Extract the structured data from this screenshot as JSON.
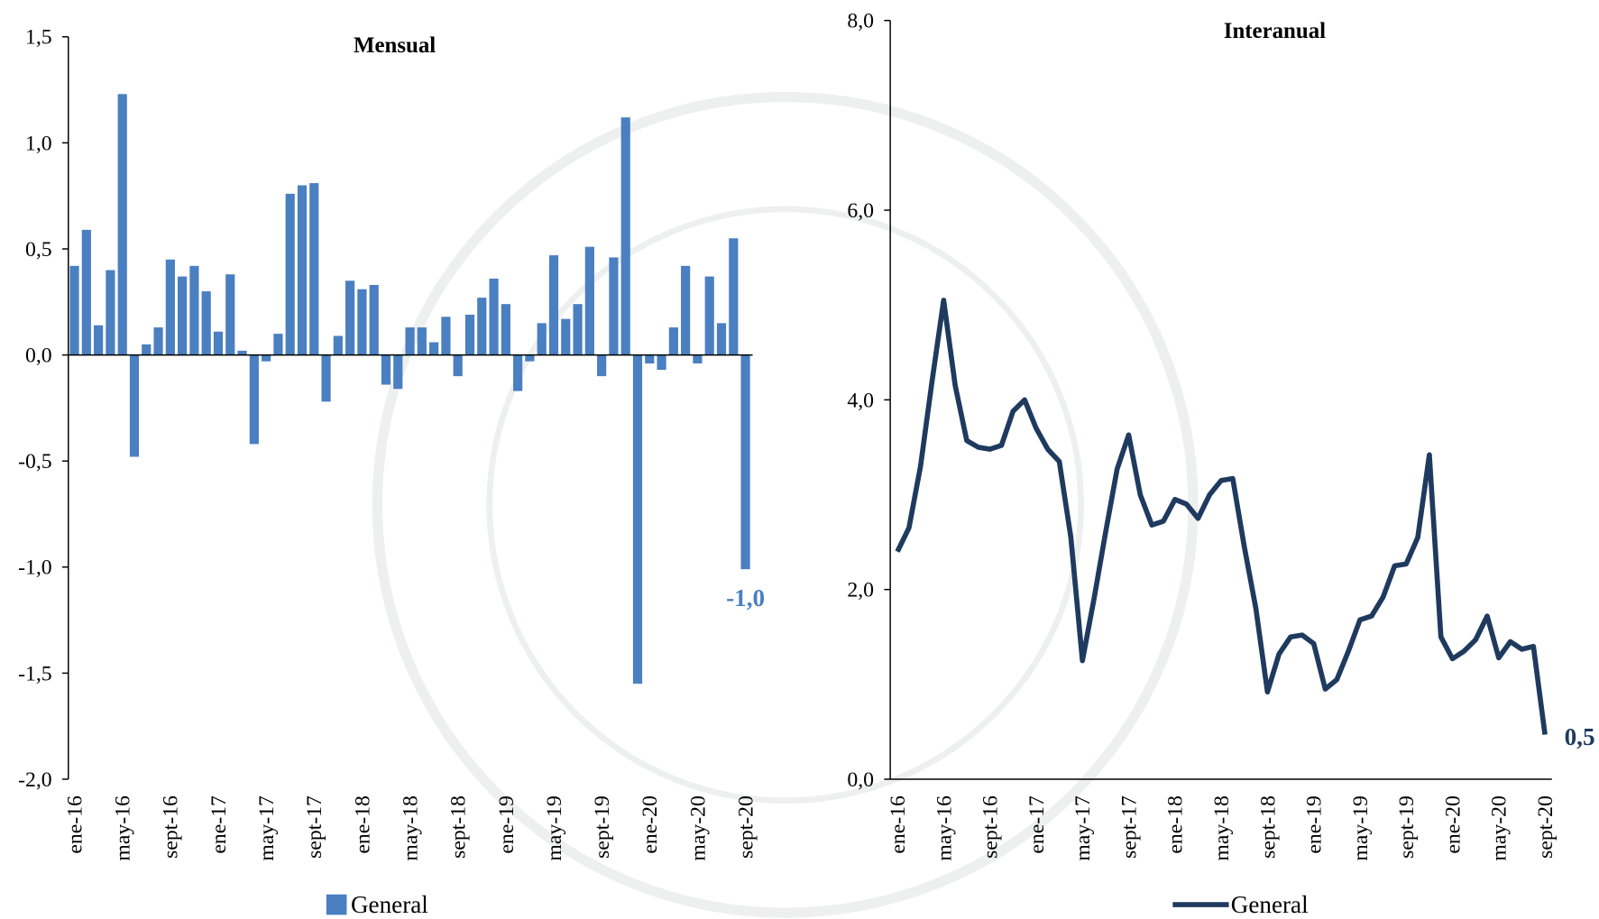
{
  "chart_data": [
    {
      "type": "bar",
      "title": "Mensual",
      "categories": [
        "ene-16",
        null,
        null,
        null,
        "may-16",
        null,
        null,
        null,
        "sept-16",
        null,
        null,
        null,
        "ene-17",
        null,
        null,
        null,
        "may-17",
        null,
        null,
        null,
        "sept-17",
        null,
        null,
        null,
        "ene-18",
        null,
        null,
        null,
        "may-18",
        null,
        null,
        null,
        "sept-18",
        null,
        null,
        null,
        "ene-19",
        null,
        null,
        null,
        "may-19",
        null,
        null,
        null,
        "sept-19",
        null,
        null,
        null,
        "ene-20",
        null,
        null,
        null,
        "may-20",
        null,
        null,
        null,
        "sept-20"
      ],
      "series": [
        {
          "name": "General",
          "color": "#4a7fc1",
          "values": [
            0.42,
            0.59,
            0.14,
            0.4,
            1.23,
            -0.48,
            0.05,
            0.13,
            0.45,
            0.37,
            0.42,
            0.3,
            0.11,
            0.38,
            0.02,
            -0.42,
            -0.03,
            0.1,
            0.76,
            0.8,
            0.81,
            -0.22,
            0.09,
            0.35,
            0.31,
            0.33,
            -0.14,
            -0.16,
            0.13,
            0.13,
            0.06,
            0.18,
            -0.1,
            0.19,
            0.27,
            0.36,
            0.24,
            -0.17,
            -0.03,
            0.15,
            0.47,
            0.17,
            0.24,
            0.51,
            -0.1,
            0.46,
            1.12,
            -1.55,
            -0.04,
            -0.07,
            0.13,
            0.42,
            -0.04,
            0.37,
            0.15,
            0.55,
            -1.01
          ],
          "value_labels": [
            null,
            null,
            null,
            null,
            null,
            null,
            null,
            null,
            null,
            null,
            null,
            null,
            null,
            null,
            null,
            null,
            null,
            null,
            null,
            null,
            null,
            null,
            null,
            null,
            null,
            null,
            null,
            null,
            null,
            null,
            null,
            null,
            null,
            null,
            null,
            null,
            null,
            null,
            null,
            null,
            null,
            null,
            null,
            null,
            null,
            null,
            null,
            null,
            null,
            null,
            null,
            null,
            null,
            null,
            null,
            null,
            "-1,0"
          ]
        }
      ],
      "ylim": [
        -2.0,
        1.5
      ],
      "yticks": [
        {
          "value": -2.0,
          "label": "-2,0"
        },
        {
          "value": -1.5,
          "label": "-1,5"
        },
        {
          "value": -1.0,
          "label": "-1,0"
        },
        {
          "value": -0.5,
          "label": "-0,5"
        },
        {
          "value": 0,
          "label": "0,0"
        },
        {
          "value": 0.5,
          "label": "0,5"
        },
        {
          "value": 1.0,
          "label": "1,0"
        },
        {
          "value": 1.5,
          "label": "1,5"
        }
      ],
      "grid": false
    },
    {
      "type": "line",
      "title": "Interanual",
      "categories": [
        "ene-16",
        null,
        null,
        null,
        "may-16",
        null,
        null,
        null,
        "sept-16",
        null,
        null,
        null,
        "ene-17",
        null,
        null,
        null,
        "may-17",
        null,
        null,
        null,
        "sept-17",
        null,
        null,
        null,
        "ene-18",
        null,
        null,
        null,
        "may-18",
        null,
        null,
        null,
        "sept-18",
        null,
        null,
        null,
        "ene-19",
        null,
        null,
        null,
        "may-19",
        null,
        null,
        null,
        "sept-19",
        null,
        null,
        null,
        "ene-20",
        null,
        null,
        null,
        "may-20",
        null,
        null,
        null,
        "sept-20"
      ],
      "series": [
        {
          "name": "General",
          "color": "#1f3a5f",
          "values": [
            2.4,
            2.65,
            3.3,
            4.2,
            5.05,
            4.15,
            3.57,
            3.5,
            3.48,
            3.52,
            3.88,
            4.0,
            3.7,
            3.48,
            3.35,
            2.55,
            1.25,
            1.9,
            2.6,
            3.27,
            3.63,
            3.0,
            2.68,
            2.72,
            2.95,
            2.9,
            2.75,
            3.0,
            3.15,
            3.17,
            2.45,
            1.8,
            0.92,
            1.32,
            1.5,
            1.52,
            1.43,
            0.95,
            1.05,
            1.35,
            1.68,
            1.72,
            1.92,
            2.25,
            2.27,
            2.55,
            3.42,
            1.5,
            1.27,
            1.35,
            1.47,
            1.72,
            1.28,
            1.45,
            1.37,
            1.4,
            0.47
          ],
          "value_labels": [
            null,
            null,
            null,
            null,
            null,
            null,
            null,
            null,
            null,
            null,
            null,
            null,
            null,
            null,
            null,
            null,
            null,
            null,
            null,
            null,
            null,
            null,
            null,
            null,
            null,
            null,
            null,
            null,
            null,
            null,
            null,
            null,
            null,
            null,
            null,
            null,
            null,
            null,
            null,
            null,
            null,
            null,
            null,
            null,
            null,
            null,
            null,
            null,
            null,
            null,
            null,
            null,
            null,
            null,
            null,
            null,
            "0,5"
          ]
        }
      ],
      "ylim": [
        0,
        8.0
      ],
      "yticks": [
        {
          "value": 0,
          "label": "0,0"
        },
        {
          "value": 2.0,
          "label": "2,0"
        },
        {
          "value": 4.0,
          "label": "4,0"
        },
        {
          "value": 6.0,
          "label": "6,0"
        },
        {
          "value": 8.0,
          "label": "8,0"
        }
      ],
      "grid": false
    }
  ]
}
